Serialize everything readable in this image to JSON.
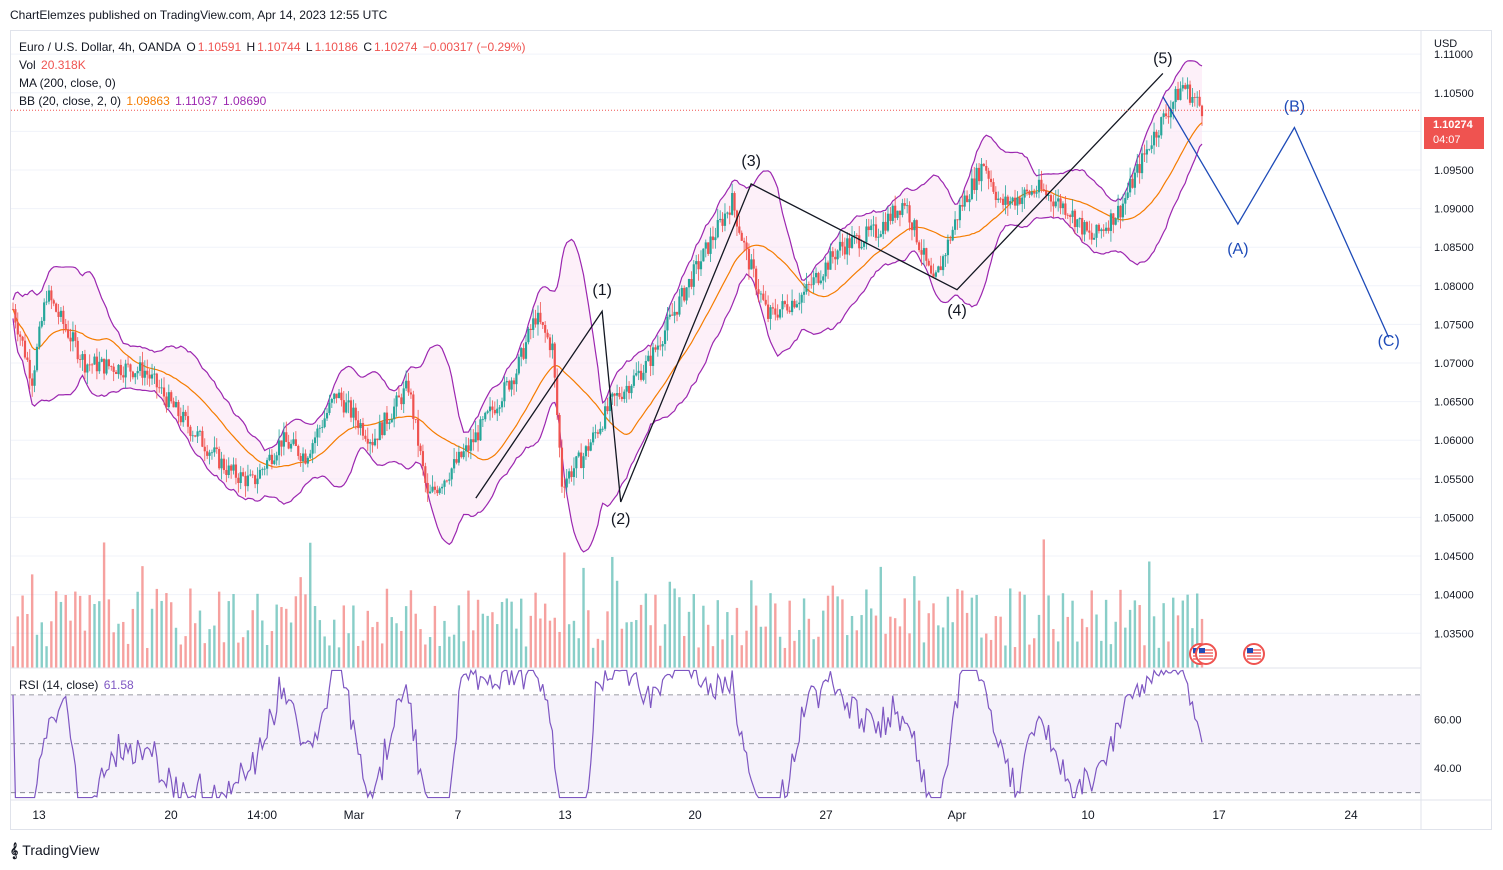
{
  "header": {
    "publisher_line": "ChartElemzes published on TradingView.com, Apr 14, 2023 12:55 UTC"
  },
  "legend": {
    "symbol": "Euro / U.S. Dollar, 4h, OANDA",
    "o_label": "O",
    "o_value": "1.10591",
    "h_label": "H",
    "h_value": "1.10744",
    "l_label": "L",
    "l_value": "1.10186",
    "c_label": "C",
    "c_value": "1.10274",
    "change": "−0.00317 (−0.29%)",
    "vol_label": "Vol",
    "vol_value": "20.318K",
    "ma_label": "MA (200, close, 0)",
    "bb_label": "BB (20, close, 2, 0)",
    "bb_basis": "1.09863",
    "bb_upper": "1.11037",
    "bb_lower": "1.08690",
    "rsi_label": "RSI (14, close)",
    "rsi_value": "61.58"
  },
  "price_scale": {
    "currency": "USD",
    "last_price": "1.10274",
    "countdown": "04:07",
    "ticks": [
      "1.11000",
      "1.10500",
      "1.10000",
      "1.09500",
      "1.09000",
      "1.08500",
      "1.08000",
      "1.07500",
      "1.07000",
      "1.06500",
      "1.06000",
      "1.05500",
      "1.05000",
      "1.04500",
      "1.04000",
      "1.03500"
    ]
  },
  "rsi_scale": {
    "ticks": [
      "60.00",
      "40.00"
    ]
  },
  "time_axis": {
    "labels": [
      "13",
      "20",
      "14:00",
      "Mar",
      "7",
      "13",
      "20",
      "27",
      "Apr",
      "10",
      "17",
      "24"
    ]
  },
  "footer": {
    "brand": "TradingView"
  },
  "colors": {
    "up": "#26a69a",
    "down": "#ef5350",
    "bb_band": "#9c27b0",
    "ma": "#f57c00",
    "rsi": "#7e57c2",
    "wave": "#131722",
    "projection": "#1e4bb8"
  },
  "chart_data": [
    {
      "type": "candlestick",
      "title": "Euro / U.S. Dollar, 4h, OANDA",
      "ylabel": "USD",
      "ylim": [
        1.0305,
        1.113
      ],
      "x_ticks": [
        "13",
        "20",
        "14:00",
        "Mar",
        "7",
        "13",
        "20",
        "27",
        "Apr",
        "10",
        "17",
        "24"
      ],
      "wave_labels": [
        {
          "label": "(1)",
          "date": "Mar 15",
          "price": 1.0765
        },
        {
          "label": "(2)",
          "date": "Mar 16",
          "price": 1.052
        },
        {
          "label": "(3)",
          "date": "Mar 23",
          "price": 1.0932
        },
        {
          "label": "(4)",
          "date": "Apr 3",
          "price": 1.079
        },
        {
          "label": "(5)",
          "date": "Apr 14",
          "price": 1.1075
        },
        {
          "label": "(A)",
          "date": "Apr 18",
          "price": 1.088
        },
        {
          "label": "(B)",
          "date": "Apr 21",
          "price": 1.1005
        },
        {
          "label": "(C)",
          "date": "Apr 26",
          "price": 1.073
        }
      ],
      "wave_path": [
        {
          "date": "Mar 8",
          "price": 1.0525
        },
        {
          "date": "Mar 15",
          "price": 1.0767
        },
        {
          "date": "Mar 16",
          "price": 1.052
        },
        {
          "date": "Mar 23",
          "price": 1.0932
        },
        {
          "date": "Apr 3",
          "price": 1.0795
        },
        {
          "date": "Apr 14",
          "price": 1.1075
        }
      ],
      "projection_path": [
        {
          "date": "Apr 14",
          "price": 1.1045
        },
        {
          "date": "Apr 18",
          "price": 1.088
        },
        {
          "date": "Apr 21",
          "price": 1.1005
        },
        {
          "date": "Apr 26",
          "price": 1.0733
        }
      ],
      "last_price": 1.10274
    },
    {
      "type": "line",
      "title": "RSI (14, close)",
      "ylim": [
        27,
        81
      ],
      "bands": [
        70,
        50,
        30
      ],
      "last_value": 61.58
    }
  ]
}
